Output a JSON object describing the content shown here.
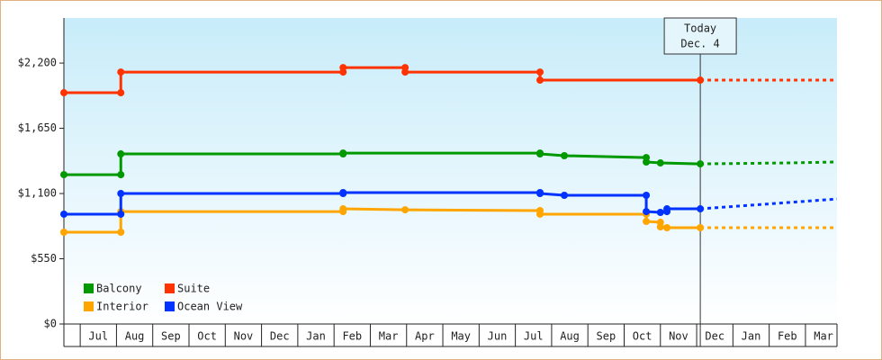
{
  "chart_data": {
    "type": "line",
    "xlim": [
      0.55,
      21.87
    ],
    "xticks": [
      {
        "value": 1.5,
        "label": "Jul"
      },
      {
        "value": 2.5,
        "label": "Aug"
      },
      {
        "value": 3.5,
        "label": "Sep"
      },
      {
        "value": 4.5,
        "label": "Oct"
      },
      {
        "value": 5.5,
        "label": "Nov"
      },
      {
        "value": 6.5,
        "label": "Dec"
      },
      {
        "value": 7.5,
        "label": "Jan"
      },
      {
        "value": 8.5,
        "label": "Feb"
      },
      {
        "value": 9.5,
        "label": "Mar"
      },
      {
        "value": 10.5,
        "label": "Apr"
      },
      {
        "value": 11.5,
        "label": "May"
      },
      {
        "value": 12.5,
        "label": "Jun"
      },
      {
        "value": 13.5,
        "label": "Jul"
      },
      {
        "value": 14.5,
        "label": "Aug"
      },
      {
        "value": 15.5,
        "label": "Sep"
      },
      {
        "value": 16.5,
        "label": "Oct"
      },
      {
        "value": 17.5,
        "label": "Nov"
      },
      {
        "value": 18.5,
        "label": "Dec"
      },
      {
        "value": 19.5,
        "label": "Jan"
      },
      {
        "value": 20.5,
        "label": "Feb"
      },
      {
        "value": 21.5,
        "label": "Mar"
      }
    ],
    "ylim": [
      0,
      2580
    ],
    "yticks": [
      {
        "value": 0,
        "label": "$0"
      },
      {
        "value": 550,
        "label": "$550"
      },
      {
        "value": 1100,
        "label": "$1,100"
      },
      {
        "value": 1650,
        "label": "$1,650"
      },
      {
        "value": 2200,
        "label": "$2,200"
      }
    ],
    "legend": "bottom-left",
    "annotation": {
      "lines": [
        "Today",
        "Dec. 4"
      ],
      "x": 18.1
    },
    "series": [
      {
        "name": "Balcony",
        "color": "#009900",
        "x": [
          0.55,
          2.12,
          2.12,
          8.25,
          8.25,
          13.68,
          13.68,
          14.35,
          16.61,
          16.61,
          17.0,
          18.1
        ],
        "values": [
          1259,
          1259,
          1434,
          1434,
          1441,
          1441,
          1434,
          1419,
          1403,
          1366,
          1358,
          1350
        ],
        "projection_x": [
          18.1,
          20.5,
          21.87
        ],
        "projection_values": [
          1350,
          1358,
          1366
        ]
      },
      {
        "name": "Suite",
        "color": "#ff3300",
        "x": [
          0.55,
          2.12,
          2.12,
          8.25,
          8.25,
          9.96,
          9.96,
          13.68,
          13.68,
          18.1
        ],
        "values": [
          1950,
          1950,
          2124,
          2124,
          2162,
          2162,
          2124,
          2124,
          2056,
          2056
        ],
        "projection_x": [
          18.1,
          21.87
        ],
        "projection_values": [
          2056,
          2056
        ]
      },
      {
        "name": "Interior",
        "color": "#ffa500",
        "x": [
          0.55,
          2.12,
          2.12,
          8.25,
          8.25,
          9.96,
          13.68,
          13.68,
          16.61,
          16.61,
          17.0,
          17.0,
          17.18,
          18.1
        ],
        "values": [
          774,
          774,
          948,
          948,
          971,
          963,
          956,
          926,
          926,
          865,
          857,
          819,
          812,
          812
        ],
        "projection_x": [
          18.1,
          21.87
        ],
        "projection_values": [
          812,
          812
        ]
      },
      {
        "name": "Ocean View",
        "color": "#0033ff",
        "x": [
          0.55,
          2.12,
          2.12,
          8.25,
          8.25,
          13.68,
          13.68,
          14.35,
          16.61,
          16.61,
          17.0,
          17.18,
          17.18,
          18.1
        ],
        "values": [
          926,
          926,
          1100,
          1100,
          1108,
          1108,
          1100,
          1085,
          1085,
          948,
          941,
          948,
          971,
          971
        ],
        "projection_x": [
          18.1,
          21.87
        ],
        "projection_values": [
          971,
          1054
        ]
      }
    ]
  }
}
